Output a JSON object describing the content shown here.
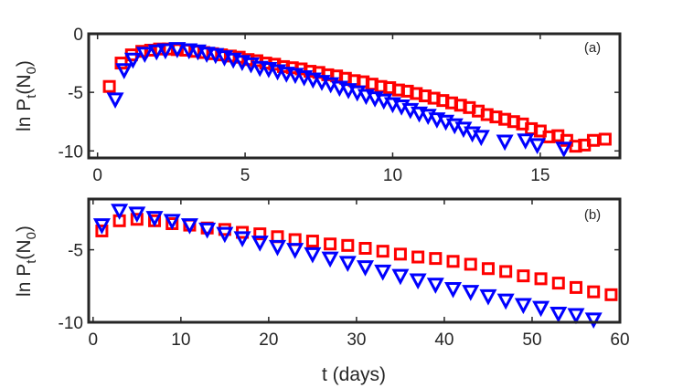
{
  "chart_data": [
    {
      "type": "scatter",
      "panel_label": "(a)",
      "ylabel": {
        "prefix": "ln P",
        "sub1": "t",
        "mid": "(N",
        "sub2": "0",
        "suffix": ")"
      },
      "xlabel": "",
      "xlim": [
        -0.3,
        17.7
      ],
      "ylim": [
        -10.6,
        0
      ],
      "xticks": [
        0,
        5,
        10,
        15
      ],
      "xtick_labels": [
        "0",
        "5",
        "10",
        "15"
      ],
      "yticks": [
        0,
        -5,
        -10
      ],
      "ytick_labels": [
        "0",
        "-5",
        "-10"
      ],
      "series": [
        {
          "name": "squares",
          "marker": "square",
          "color": "#ff0000",
          "x": [
            0.4,
            0.8,
            1.15,
            1.5,
            1.8,
            2.1,
            2.4,
            2.7,
            3.0,
            3.3,
            3.6,
            3.9,
            4.2,
            4.5,
            4.8,
            5.1,
            5.4,
            5.7,
            6.0,
            6.3,
            6.6,
            6.9,
            7.2,
            7.5,
            7.8,
            8.1,
            8.4,
            8.7,
            9.0,
            9.3,
            9.6,
            9.9,
            10.2,
            10.5,
            10.8,
            11.1,
            11.4,
            11.7,
            12.0,
            12.3,
            12.6,
            12.9,
            13.2,
            13.5,
            13.8,
            14.1,
            14.4,
            14.7,
            15.0,
            15.3,
            15.6,
            15.9,
            16.2,
            16.5,
            16.8,
            17.2
          ],
          "y": [
            -4.5,
            -2.5,
            -1.8,
            -1.5,
            -1.4,
            -1.3,
            -1.3,
            -1.35,
            -1.4,
            -1.5,
            -1.6,
            -1.7,
            -1.8,
            -1.9,
            -2.0,
            -2.2,
            -2.3,
            -2.5,
            -2.6,
            -2.8,
            -2.9,
            -3.0,
            -3.2,
            -3.3,
            -3.5,
            -3.6,
            -3.8,
            -4.0,
            -4.1,
            -4.3,
            -4.5,
            -4.6,
            -4.8,
            -4.9,
            -5.1,
            -5.3,
            -5.5,
            -5.7,
            -5.9,
            -6.1,
            -6.3,
            -6.6,
            -6.9,
            -7.1,
            -7.3,
            -7.5,
            -7.7,
            -8.1,
            -8.3,
            -8.8,
            -8.7,
            -9.1,
            -9.6,
            -9.5,
            -9.1,
            -9.0
          ]
        },
        {
          "name": "triangles",
          "marker": "triangle-down",
          "color": "#0000ff",
          "x": [
            0.6,
            0.9,
            1.2,
            1.6,
            2.0,
            2.3,
            2.7,
            3.1,
            3.4,
            3.7,
            4.0,
            4.3,
            4.6,
            4.9,
            5.2,
            5.5,
            5.8,
            6.1,
            6.4,
            6.7,
            7.0,
            7.3,
            7.6,
            7.9,
            8.2,
            8.5,
            8.8,
            9.1,
            9.4,
            9.7,
            10.0,
            10.3,
            10.6,
            10.9,
            11.2,
            11.5,
            11.8,
            12.1,
            12.4,
            12.7,
            13.0,
            13.8,
            14.5,
            14.9,
            15.8
          ],
          "y": [
            -5.6,
            -3.1,
            -2.2,
            -1.7,
            -1.5,
            -1.4,
            -1.3,
            -1.4,
            -1.5,
            -1.7,
            -1.8,
            -2.0,
            -2.2,
            -2.4,
            -2.6,
            -2.9,
            -3.0,
            -3.2,
            -3.4,
            -3.5,
            -3.7,
            -3.9,
            -4.1,
            -4.3,
            -4.6,
            -4.8,
            -5.0,
            -5.3,
            -5.5,
            -5.7,
            -6.0,
            -6.2,
            -6.5,
            -6.8,
            -7.0,
            -7.3,
            -7.5,
            -7.8,
            -8.1,
            -8.5,
            -8.8,
            -9.2,
            -9.1,
            -9.5,
            -9.8
          ]
        }
      ]
    },
    {
      "type": "scatter",
      "panel_label": "(b)",
      "ylabel": {
        "prefix": "ln P",
        "sub1": "t",
        "mid": "(N",
        "sub2": "0",
        "suffix": ")"
      },
      "xlabel": "t (days)",
      "xlim": [
        -0.5,
        60
      ],
      "ylim": [
        -10,
        -1.5
      ],
      "xticks": [
        0,
        10,
        20,
        30,
        40,
        50,
        60
      ],
      "xtick_labels": [
        "0",
        "10",
        "20",
        "30",
        "40",
        "50",
        "60"
      ],
      "yticks": [
        -5,
        -10
      ],
      "ytick_labels": [
        "-5",
        "-10"
      ],
      "series": [
        {
          "name": "squares",
          "marker": "square",
          "color": "#ff0000",
          "x": [
            1,
            3,
            5,
            7,
            9,
            11,
            13,
            15,
            17,
            19,
            21,
            23,
            25,
            27,
            29,
            31,
            33,
            35,
            37,
            39,
            41,
            43,
            45,
            47,
            49,
            51,
            53,
            55,
            57,
            59
          ],
          "y": [
            -3.7,
            -3.0,
            -2.9,
            -3.0,
            -3.2,
            -3.3,
            -3.5,
            -3.6,
            -3.8,
            -3.9,
            -4.1,
            -4.3,
            -4.4,
            -4.6,
            -4.7,
            -4.9,
            -5.1,
            -5.3,
            -5.5,
            -5.6,
            -5.8,
            -6.0,
            -6.3,
            -6.5,
            -6.8,
            -7.0,
            -7.3,
            -7.6,
            -7.9,
            -8.1
          ]
        },
        {
          "name": "triangles",
          "marker": "triangle-down",
          "color": "#0000ff",
          "x": [
            1,
            3,
            5,
            7,
            9,
            11,
            13,
            15,
            17,
            19,
            21,
            23,
            25,
            27,
            29,
            31,
            33,
            35,
            37,
            39,
            41,
            43,
            45,
            47,
            49,
            51,
            53,
            55,
            57
          ],
          "y": [
            -3.3,
            -2.3,
            -2.5,
            -2.8,
            -3.0,
            -3.3,
            -3.6,
            -3.9,
            -4.2,
            -4.5,
            -4.8,
            -5.0,
            -5.3,
            -5.6,
            -5.9,
            -6.2,
            -6.5,
            -6.8,
            -7.1,
            -7.4,
            -7.7,
            -7.9,
            -8.2,
            -8.5,
            -8.8,
            -9.0,
            -9.4,
            -9.5,
            -9.8
          ]
        }
      ]
    }
  ]
}
